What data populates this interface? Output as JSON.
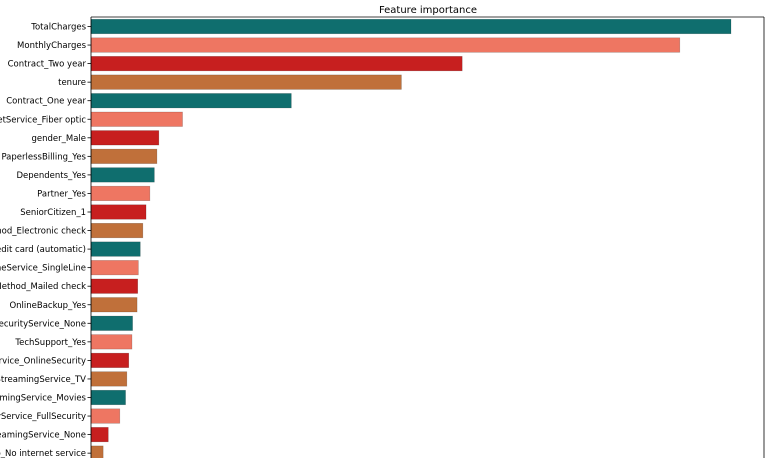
{
  "chart_data": {
    "type": "bar",
    "orientation": "horizontal",
    "title": "Feature importance",
    "xlabel": "",
    "ylabel": "",
    "grid": false,
    "palette": [
      "#0f6e6e",
      "#ee7662",
      "#c71f1f",
      "#c0703a"
    ],
    "categories": [
      "TotalCharges",
      "MonthlyCharges",
      "Contract_Two year",
      "tenure",
      "Contract_One year",
      "InternetService_Fiber optic",
      "gender_Male",
      "PaperlessBilling_Yes",
      "Dependents_Yes",
      "Partner_Yes",
      "SeniorCitizen_1",
      "PaymentMethod_Electronic check",
      "PaymentMethod_Credit card (automatic)",
      "PhoneService_SingleLine",
      "PaymentMethod_Mailed check",
      "OnlineBackup_Yes",
      "SecurityService_None",
      "TechSupport_Yes",
      "SecurityService_OnlineSecurity",
      "StreamingService_TV",
      "StreamingService_Movies",
      "SecurityService_FullSecurity",
      "StreamingService_None",
      "OnlineBackup_No internet service"
    ],
    "values": [
      1.0,
      0.92,
      0.58,
      0.485,
      0.313,
      0.143,
      0.106,
      0.103,
      0.099,
      0.092,
      0.086,
      0.081,
      0.077,
      0.074,
      0.073,
      0.072,
      0.065,
      0.064,
      0.059,
      0.056,
      0.054,
      0.045,
      0.027,
      0.019
    ]
  }
}
